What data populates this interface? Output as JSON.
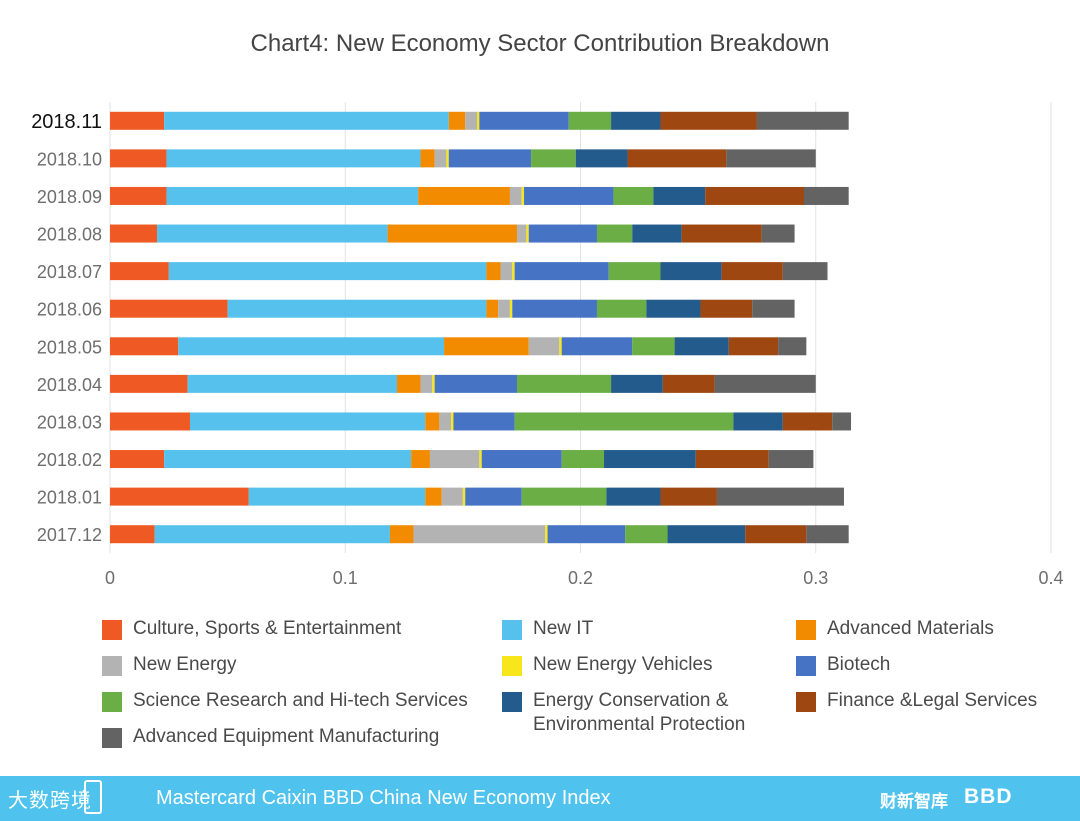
{
  "footer": {
    "title": "Mastercard Caixin BBD China New Economy Index",
    "logo_left": "大数跨境",
    "logo_caixin": "财新智库",
    "logo_bbd": "BBD"
  },
  "chart_data": {
    "type": "bar",
    "orientation": "horizontal",
    "stacked": true,
    "title": "Chart4: New Economy Sector Contribution Breakdown",
    "xlabel": "",
    "ylabel": "",
    "xlim": [
      0,
      0.4
    ],
    "xticks": [
      0,
      0.1,
      0.2,
      0.3,
      0.4
    ],
    "grid": true,
    "legend_position": "bottom",
    "highlight_category": "2018.11",
    "categories": [
      "2018.11",
      "2018.10",
      "2018.09",
      "2018.08",
      "2018.07",
      "2018.06",
      "2018.05",
      "2018.04",
      "2018.03",
      "2018.02",
      "2018.01",
      "2017.12"
    ],
    "series": [
      {
        "name": "Culture, Sports & Entertainment",
        "color": "#ef5a24",
        "values": [
          0.023,
          0.024,
          0.024,
          0.02,
          0.025,
          0.05,
          0.029,
          0.033,
          0.034,
          0.023,
          0.059,
          0.019
        ]
      },
      {
        "name": "New IT",
        "color": "#56c1ed",
        "values": [
          0.121,
          0.108,
          0.107,
          0.098,
          0.135,
          0.11,
          0.113,
          0.089,
          0.1,
          0.105,
          0.075,
          0.1
        ]
      },
      {
        "name": "Advanced Materials",
        "color": "#f38b00",
        "values": [
          0.007,
          0.006,
          0.039,
          0.055,
          0.006,
          0.005,
          0.036,
          0.01,
          0.006,
          0.008,
          0.007,
          0.01
        ]
      },
      {
        "name": "New Energy",
        "color": "#b3b3b3",
        "values": [
          0.005,
          0.005,
          0.005,
          0.004,
          0.005,
          0.005,
          0.013,
          0.005,
          0.005,
          0.021,
          0.009,
          0.056
        ]
      },
      {
        "name": "New Energy Vehicles",
        "color": "#f7e61b",
        "values": [
          0.001,
          0.001,
          0.001,
          0.001,
          0.001,
          0.001,
          0.001,
          0.001,
          0.001,
          0.001,
          0.001,
          0.001
        ]
      },
      {
        "name": "Biotech",
        "color": "#4673c4",
        "values": [
          0.038,
          0.035,
          0.038,
          0.029,
          0.04,
          0.036,
          0.03,
          0.035,
          0.026,
          0.034,
          0.024,
          0.033
        ]
      },
      {
        "name": "Science Research and Hi-tech Services",
        "color": "#6aae45",
        "values": [
          0.018,
          0.019,
          0.017,
          0.015,
          0.022,
          0.021,
          0.018,
          0.04,
          0.093,
          0.018,
          0.036,
          0.018
        ]
      },
      {
        "name": "Energy Conservation & Environmental Protection",
        "color": "#235b8c",
        "values": [
          0.021,
          0.022,
          0.022,
          0.021,
          0.026,
          0.023,
          0.023,
          0.022,
          0.021,
          0.039,
          0.023,
          0.033
        ]
      },
      {
        "name": "Finance &Legal Services",
        "color": "#9e4711",
        "values": [
          0.041,
          0.042,
          0.042,
          0.034,
          0.026,
          0.022,
          0.021,
          0.022,
          0.021,
          0.031,
          0.024,
          0.026
        ]
      },
      {
        "name": "Advanced Equipment Manufacturing",
        "color": "#636363",
        "values": [
          0.039,
          0.038,
          0.019,
          0.014,
          0.019,
          0.018,
          0.012,
          0.043,
          0.008,
          0.019,
          0.054,
          0.018
        ]
      }
    ]
  }
}
